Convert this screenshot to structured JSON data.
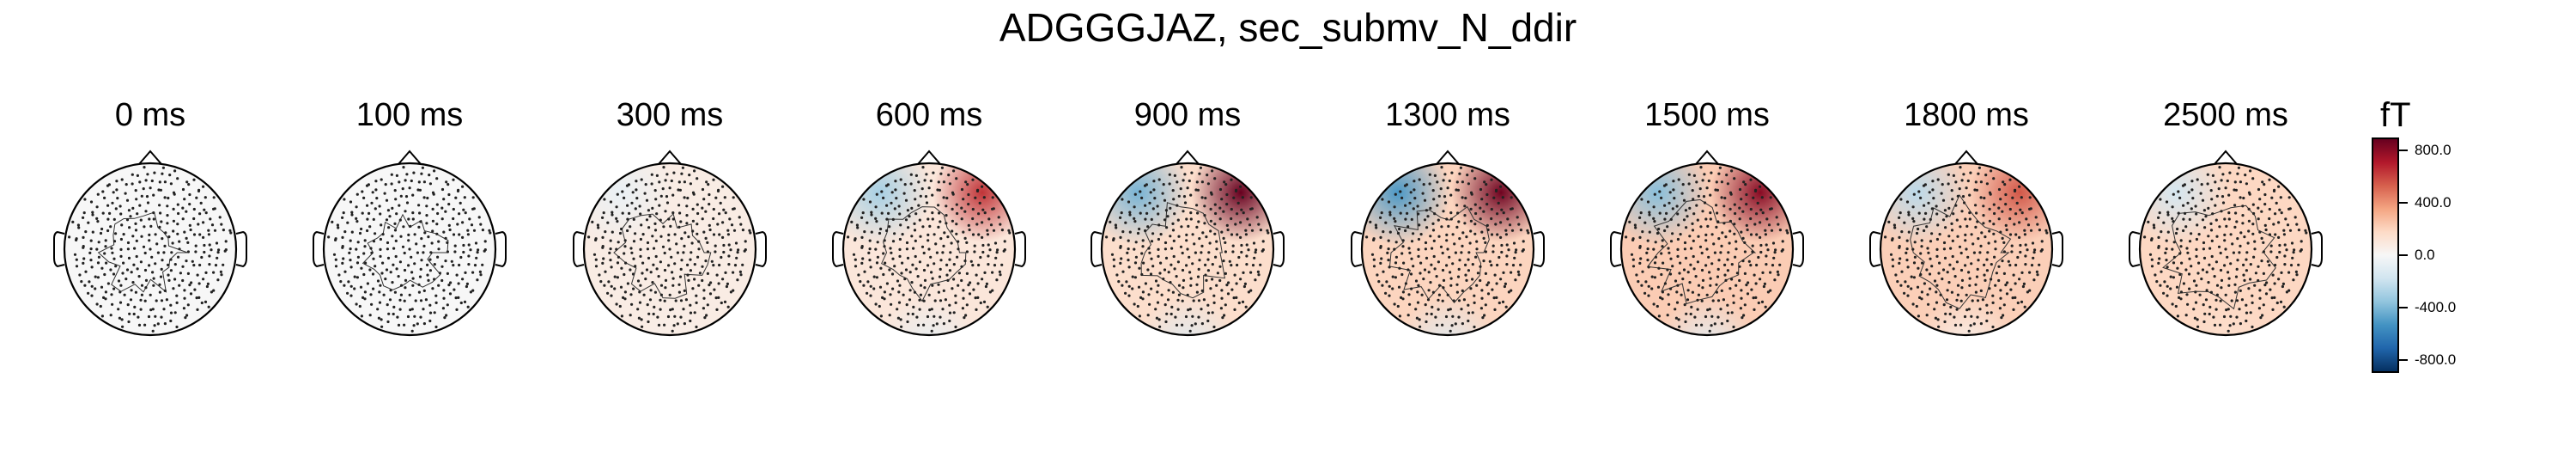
{
  "title": "ADGGGJAZ, sec_submv_N_ddir",
  "colorbar": {
    "unit": "fT",
    "min": -900,
    "max": 900,
    "ticks": [
      {
        "value": 800,
        "label": "800.0"
      },
      {
        "value": 400,
        "label": "400.0"
      },
      {
        "value": 0,
        "label": "0.0"
      },
      {
        "value": -400,
        "label": "-400.0"
      },
      {
        "value": -800,
        "label": "-800.0"
      }
    ],
    "colormap": [
      "#053061",
      "#2166ac",
      "#4393c3",
      "#92c5de",
      "#d1e5f0",
      "#f7f7f7",
      "#fddbc7",
      "#f4a582",
      "#d6604d",
      "#b2182b",
      "#67001f"
    ]
  },
  "topomaps": [
    {
      "label": "0 ms",
      "background_value": 0,
      "hotspot": null,
      "coldspot": null,
      "bottom_value": 0
    },
    {
      "label": "100 ms",
      "background_value": 0,
      "hotspot": null,
      "coldspot": null,
      "bottom_value": 0
    },
    {
      "label": "300 ms",
      "background_value": 70,
      "hotspot": null,
      "coldspot": {
        "value": -60,
        "region": "upper-left"
      },
      "bottom_value": 60
    },
    {
      "label": "600 ms",
      "background_value": 110,
      "hotspot": {
        "value": 650,
        "region": "upper-right"
      },
      "coldspot": {
        "value": -300,
        "region": "upper-left"
      },
      "bottom_value": -80
    },
    {
      "label": "900 ms",
      "background_value": 160,
      "hotspot": {
        "value": 900,
        "region": "upper-right"
      },
      "coldspot": {
        "value": -420,
        "region": "upper-left"
      },
      "bottom_value": -120
    },
    {
      "label": "1300 ms",
      "background_value": 200,
      "hotspot": {
        "value": 880,
        "region": "upper-right"
      },
      "coldspot": {
        "value": -520,
        "region": "upper-left"
      },
      "bottom_value": -120
    },
    {
      "label": "1500 ms",
      "background_value": 230,
      "hotspot": {
        "value": 820,
        "region": "upper-right"
      },
      "coldspot": {
        "value": -380,
        "region": "upper-left"
      },
      "bottom_value": -100
    },
    {
      "label": "1800 ms",
      "background_value": 220,
      "hotspot": {
        "value": 560,
        "region": "upper-right"
      },
      "coldspot": {
        "value": -240,
        "region": "upper-left"
      },
      "bottom_value": 40
    },
    {
      "label": "2500 ms",
      "background_value": 190,
      "hotspot": null,
      "coldspot": {
        "value": -160,
        "region": "upper-left"
      },
      "bottom_value": 150
    }
  ]
}
